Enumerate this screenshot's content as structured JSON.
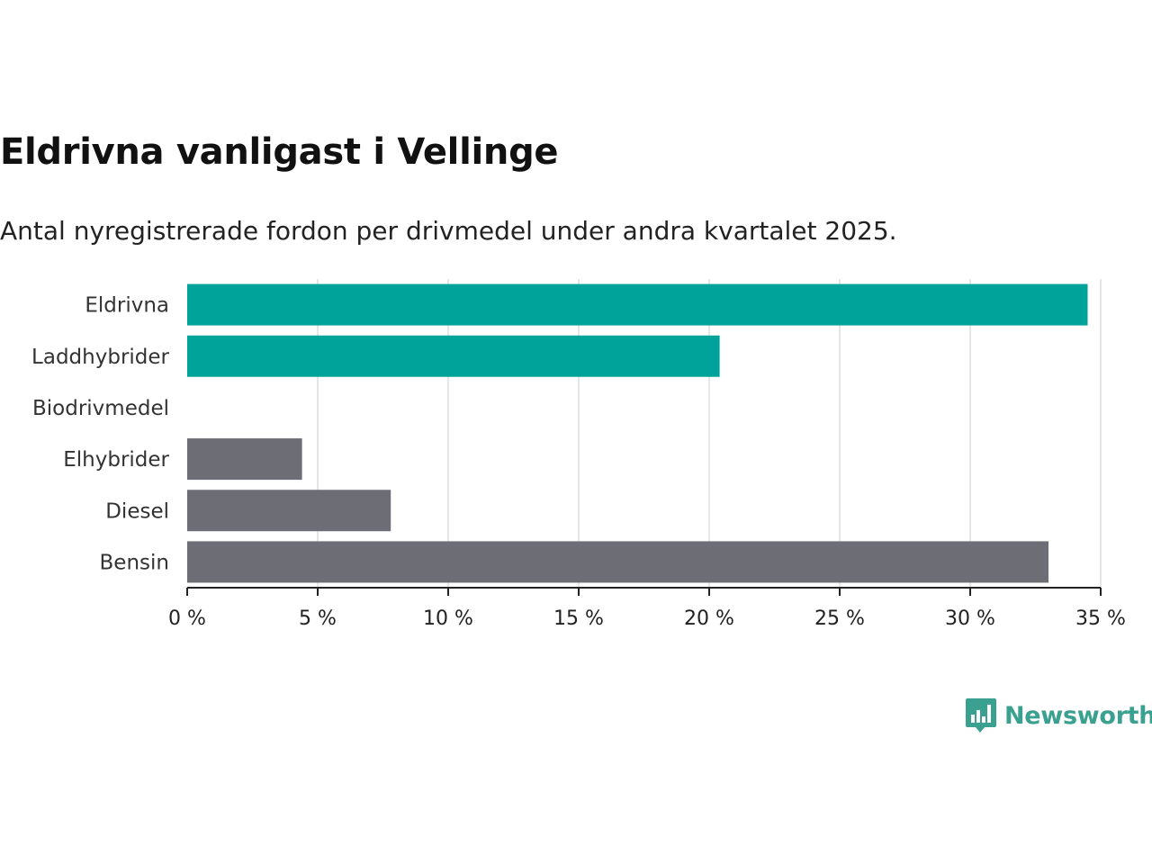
{
  "chart_data": {
    "type": "bar",
    "orientation": "horizontal",
    "title": "Eldrivna vanligast i Vellinge",
    "subtitle": "Antal nyregistrerade fordon per drivmedel under andra kvartalet 2025.",
    "categories": [
      "Eldrivna",
      "Laddhybrider",
      "Biodrivmedel",
      "Elhybrider",
      "Diesel",
      "Bensin"
    ],
    "values": [
      34.5,
      20.4,
      0,
      4.4,
      7.8,
      33.0
    ],
    "bar_colors": [
      "#00a39a",
      "#00a39a",
      "#00a39a",
      "#6d6d75",
      "#6d6d75",
      "#6d6d75"
    ],
    "xlim": [
      0,
      35
    ],
    "xticks": [
      0,
      5,
      10,
      15,
      20,
      25,
      30,
      35
    ],
    "xtick_labels": [
      "0 %",
      "5 %",
      "10 %",
      "15 %",
      "20 %",
      "25 %",
      "30 %",
      "35 %"
    ],
    "xlabel": "",
    "ylabel": "",
    "grid": "vertical"
  },
  "logo": {
    "text": "Newsworthy",
    "color": "#3aa08f"
  }
}
